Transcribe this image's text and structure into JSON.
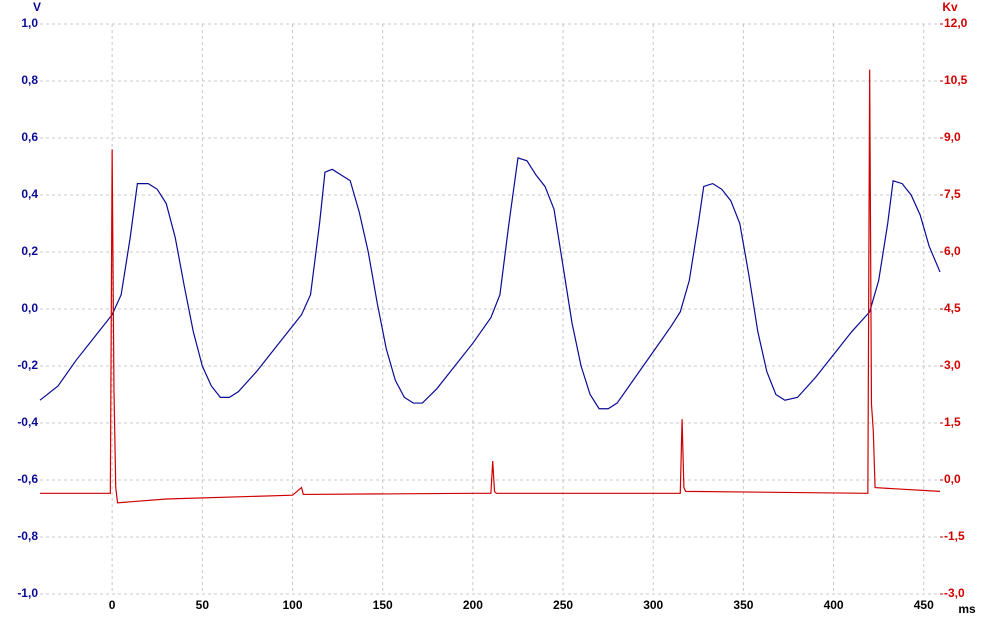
{
  "chart_data": {
    "type": "line",
    "y_label": "V",
    "y2_label": "Kv",
    "x_label": "ms",
    "xlim": [
      -40,
      459
    ],
    "xticks": [
      0,
      50,
      100,
      150,
      200,
      250,
      300,
      350,
      400,
      450
    ],
    "ylim": [
      -1,
      1
    ],
    "yticks": [
      {
        "value": -1,
        "label": "-1,0"
      },
      {
        "value": -0.8,
        "label": "-0,8"
      },
      {
        "value": -0.6,
        "label": "-0,6"
      },
      {
        "value": -0.4,
        "label": "-0,4"
      },
      {
        "value": -0.2,
        "label": "-0,2"
      },
      {
        "value": 0,
        "label": "0,0"
      },
      {
        "value": 0.2,
        "label": "0,2"
      },
      {
        "value": 0.4,
        "label": "0,4"
      },
      {
        "value": 0.6,
        "label": "0,6"
      },
      {
        "value": 0.8,
        "label": "0,8"
      },
      {
        "value": 1,
        "label": "1,0"
      }
    ],
    "y2lim": [
      -3,
      12
    ],
    "y2ticks": [
      {
        "value": -3,
        "label": "-3,0"
      },
      {
        "value": -1.5,
        "label": "-1,5"
      },
      {
        "value": 0,
        "label": "0,0"
      },
      {
        "value": 1.5,
        "label": "1,5"
      },
      {
        "value": 3,
        "label": "3,0"
      },
      {
        "value": 4.5,
        "label": "4,5"
      },
      {
        "value": 6,
        "label": "6,0"
      },
      {
        "value": 7.5,
        "label": "7,5"
      },
      {
        "value": 9,
        "label": "9,0"
      },
      {
        "value": 10.5,
        "label": "10,5"
      },
      {
        "value": 12,
        "label": "12,0"
      }
    ],
    "grid": true,
    "y_color": "#0a0a96",
    "y2_color": "#d00000",
    "series": [
      {
        "color": "#0a0a96",
        "axis": "y",
        "x": [
          -40,
          -30,
          -20,
          -10,
          0,
          5,
          10,
          14,
          20,
          25,
          30,
          35,
          40,
          45,
          50,
          55,
          60,
          65,
          70,
          80,
          90,
          100,
          105,
          110,
          115,
          118,
          122,
          127,
          132,
          137,
          142,
          147,
          152,
          157,
          162,
          167,
          172,
          180,
          190,
          200,
          210,
          215,
          220,
          225,
          230,
          235,
          240,
          245,
          250,
          255,
          260,
          265,
          270,
          275,
          280,
          290,
          300,
          310,
          315,
          320,
          325,
          328,
          333,
          338,
          343,
          348,
          353,
          358,
          363,
          368,
          373,
          380,
          390,
          400,
          410,
          420,
          425,
          430,
          433,
          438,
          443,
          448,
          453,
          459
        ],
        "values": [
          -0.32,
          -0.27,
          -0.18,
          -0.1,
          -0.02,
          0.05,
          0.25,
          0.44,
          0.44,
          0.42,
          0.37,
          0.25,
          0.08,
          -0.08,
          -0.2,
          -0.27,
          -0.31,
          -0.31,
          -0.29,
          -0.22,
          -0.14,
          -0.06,
          -0.02,
          0.05,
          0.3,
          0.48,
          0.49,
          0.47,
          0.45,
          0.34,
          0.2,
          0.02,
          -0.14,
          -0.25,
          -0.31,
          -0.33,
          -0.33,
          -0.28,
          -0.2,
          -0.12,
          -0.03,
          0.05,
          0.3,
          0.53,
          0.52,
          0.47,
          0.43,
          0.35,
          0.15,
          -0.05,
          -0.2,
          -0.3,
          -0.35,
          -0.35,
          -0.33,
          -0.24,
          -0.15,
          -0.06,
          -0.01,
          0.1,
          0.3,
          0.43,
          0.44,
          0.42,
          0.38,
          0.3,
          0.12,
          -0.08,
          -0.22,
          -0.3,
          -0.32,
          -0.31,
          -0.24,
          -0.16,
          -0.08,
          -0.01,
          0.1,
          0.3,
          0.45,
          0.44,
          0.4,
          0.33,
          0.22,
          0.13
        ]
      },
      {
        "color": "#d00000",
        "axis": "y2",
        "x": [
          -40,
          -1,
          0,
          1,
          2,
          3,
          30,
          100,
          105,
          106,
          200,
          210,
          211,
          212,
          213,
          300,
          315,
          316,
          317,
          318,
          419,
          420,
          421,
          422,
          423,
          459
        ],
        "values": [
          -0.35,
          -0.35,
          8.7,
          2.4,
          -0.2,
          -0.6,
          -0.5,
          -0.4,
          -0.2,
          -0.38,
          -0.35,
          -0.35,
          0.5,
          -0.3,
          -0.35,
          -0.35,
          -0.35,
          1.6,
          -0.2,
          -0.3,
          -0.35,
          10.8,
          2.0,
          1.3,
          -0.2,
          -0.3
        ]
      }
    ]
  }
}
